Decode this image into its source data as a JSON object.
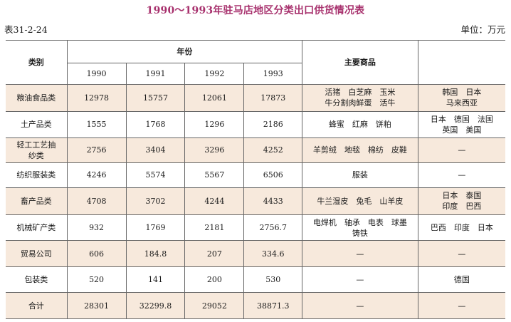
{
  "title": "1990～1993年驻马店地区分类出口供货情况表",
  "table_id": "表31-2-24",
  "unit": "单位：万元",
  "headers": {
    "category": "类别",
    "years_group": "年份",
    "years": [
      "1990",
      "1991",
      "1992",
      "1993"
    ],
    "main_goods": "主要商品"
  },
  "rows": [
    {
      "category": "粮油食品类",
      "values": [
        "12978",
        "15757",
        "12061",
        "17873"
      ],
      "goods": [
        "活猪　白芝麻　玉米",
        "牛分割肉鲜蛋　活牛"
      ],
      "markets": [
        "韩国　日本",
        "马来西亚"
      ]
    },
    {
      "category": "土产品类",
      "values": [
        "1555",
        "1768",
        "1296",
        "2186"
      ],
      "goods": [
        "蜂蜜　红麻　饼粕"
      ],
      "markets": [
        "日本　德国　法国",
        "英国　美国"
      ]
    },
    {
      "category": "轻工工艺抽纱类",
      "values": [
        "2756",
        "3404",
        "3296",
        "4252"
      ],
      "goods": [
        "羊剪绒　地毯　棉纺　皮鞋"
      ],
      "markets": [
        "—"
      ]
    },
    {
      "category": "纺织服装类",
      "values": [
        "4246",
        "5574",
        "5567",
        "6506"
      ],
      "goods": [
        "服装"
      ],
      "markets": [
        "—"
      ]
    },
    {
      "category": "畜产品类",
      "values": [
        "4708",
        "3702",
        "4244",
        "4433"
      ],
      "goods": [
        "牛兰湿皮　兔毛　山羊皮"
      ],
      "markets": [
        "日本　泰国",
        "印度　巴西"
      ]
    },
    {
      "category": "机械矿产类",
      "values": [
        "932",
        "1769",
        "2181",
        "2756.7"
      ],
      "goods": [
        "电焊机　轴承　电表　球墨",
        "铸铁"
      ],
      "markets": [
        "巴西　印度　日本"
      ]
    },
    {
      "category": "贸易公司",
      "values": [
        "606",
        "184.8",
        "207",
        "334.6"
      ],
      "goods": [
        "—"
      ],
      "markets": [
        "—"
      ]
    },
    {
      "category": "包装类",
      "values": [
        "520",
        "141",
        "200",
        "530"
      ],
      "goods": [
        "—"
      ],
      "markets": [
        "德国"
      ]
    },
    {
      "category": "合计",
      "values": [
        "28301",
        "32299.8",
        "29052",
        "38871.3"
      ],
      "goods": [
        "—"
      ],
      "markets": [
        "—"
      ]
    }
  ]
}
